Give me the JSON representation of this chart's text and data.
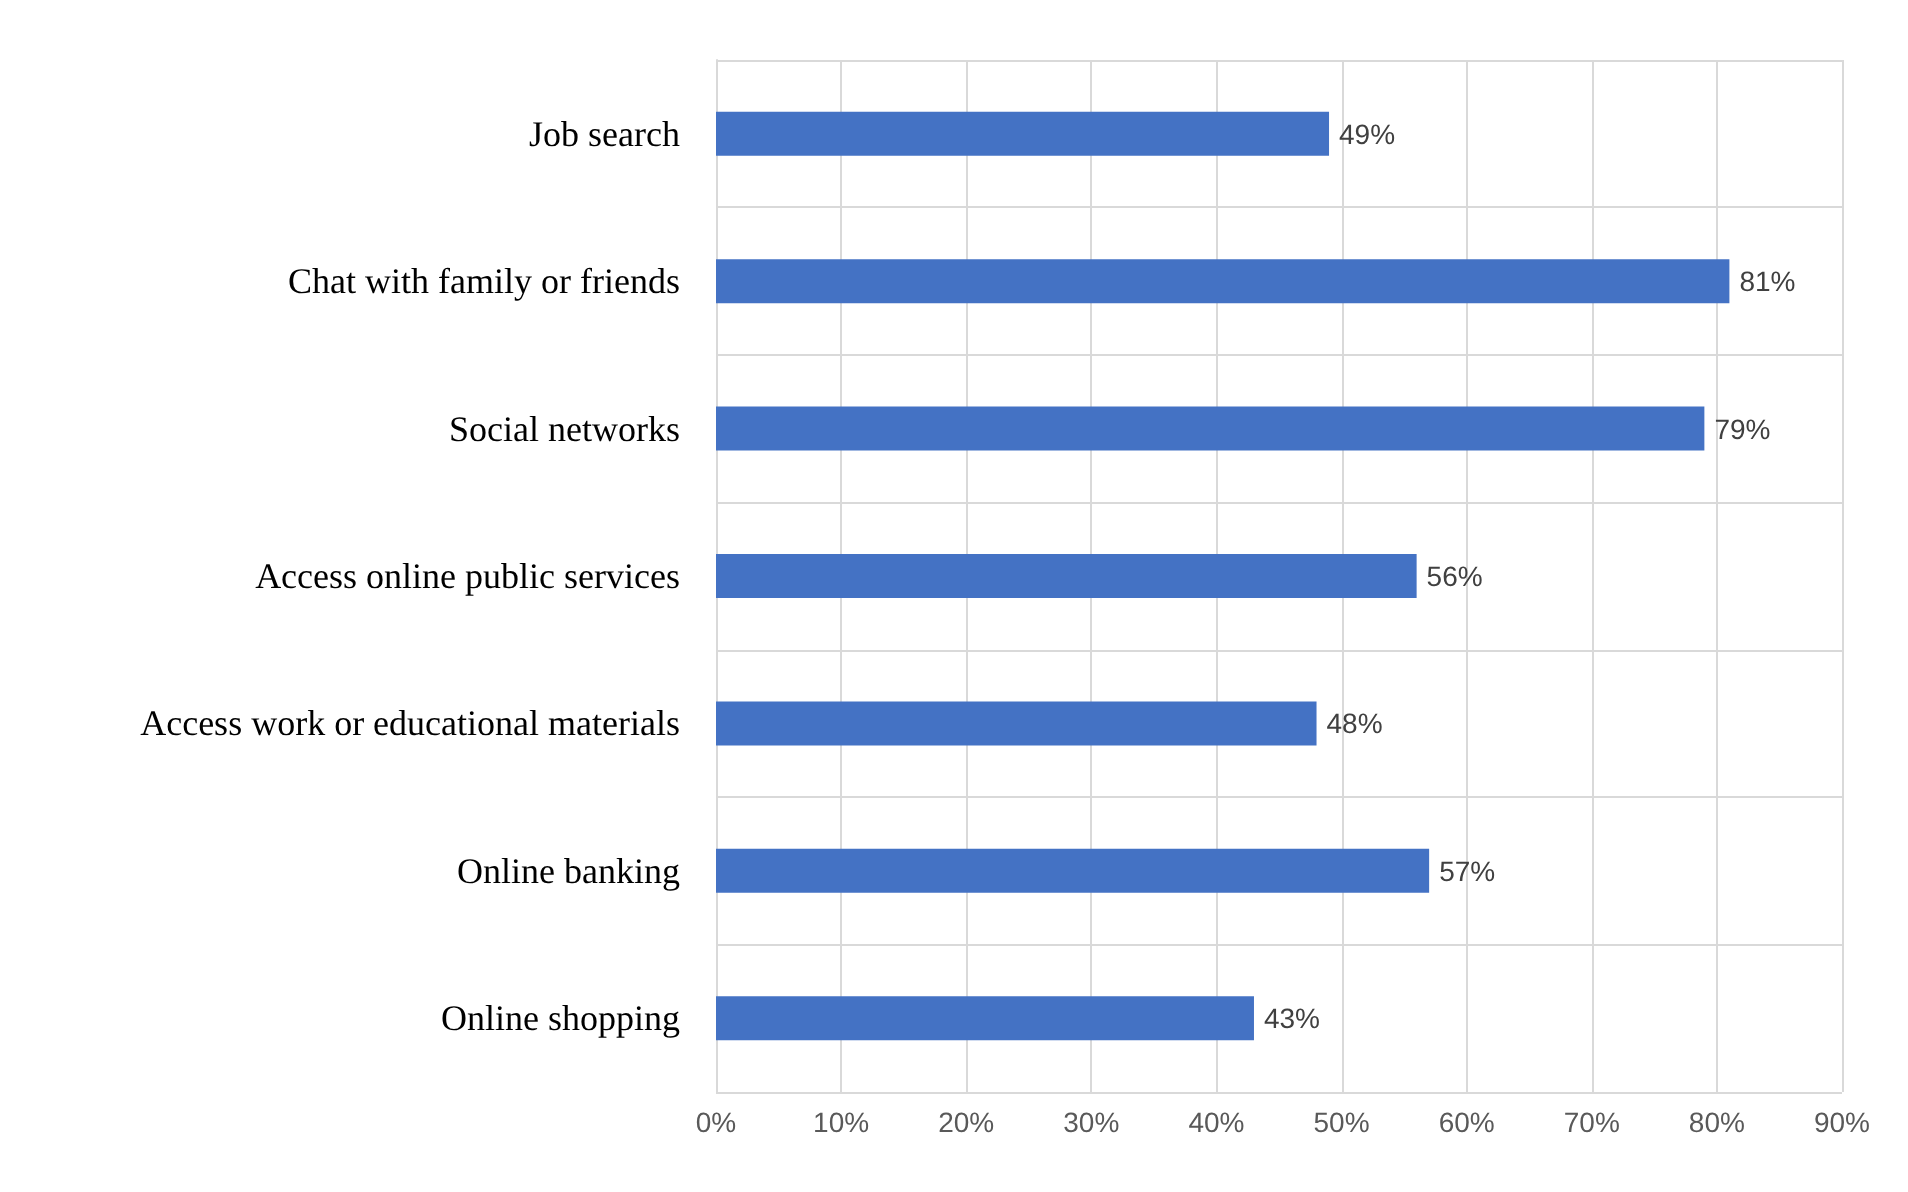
{
  "chart_data": {
    "type": "bar",
    "orientation": "horizontal",
    "categories": [
      "Job search",
      "Chat with family or friends",
      "Social networks",
      "Access online public services",
      "Access work or educational materials",
      "Online banking",
      "Online shopping"
    ],
    "values": [
      49,
      81,
      79,
      56,
      48,
      57,
      43
    ],
    "value_labels": [
      "49%",
      "81%",
      "79%",
      "56%",
      "48%",
      "57%",
      "43%"
    ],
    "color": "#4472c4",
    "xlim": [
      0,
      90
    ],
    "xticks": [
      {
        "value": 0,
        "label": "0%"
      },
      {
        "value": 10,
        "label": "10%"
      },
      {
        "value": 20,
        "label": "20%"
      },
      {
        "value": 30,
        "label": "30%"
      },
      {
        "value": 40,
        "label": "40%"
      },
      {
        "value": 50,
        "label": "50%"
      },
      {
        "value": 60,
        "label": "60%"
      },
      {
        "value": 70,
        "label": "70%"
      },
      {
        "value": 80,
        "label": "80%"
      },
      {
        "value": 90,
        "label": "90%"
      }
    ],
    "grid": true
  }
}
